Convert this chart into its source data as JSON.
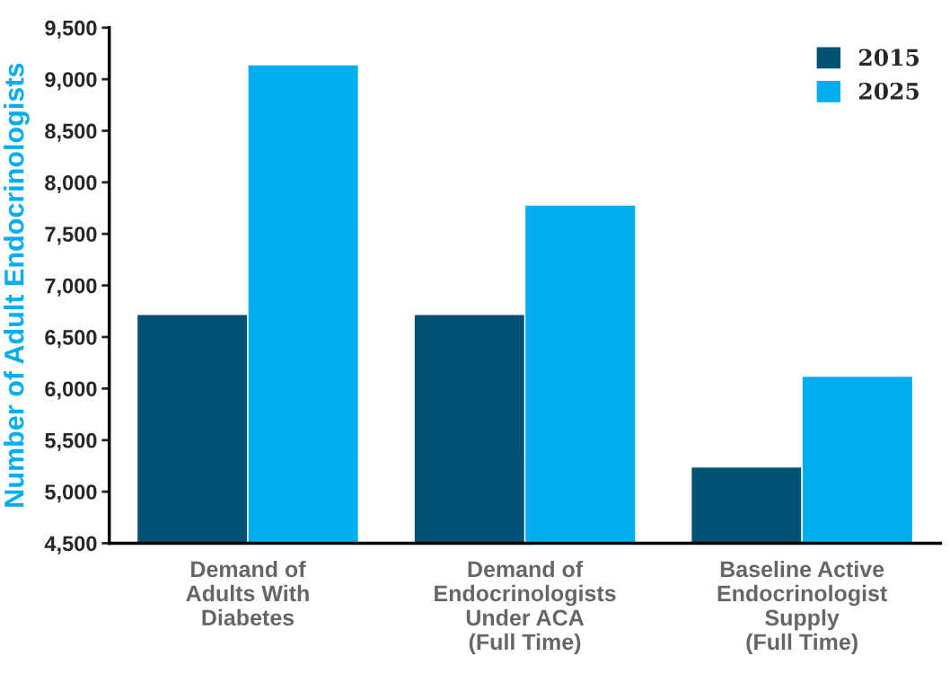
{
  "chart_data": {
    "type": "bar",
    "ylabel": "Number of Adult Endocrinologists",
    "categories": [
      "Demand of\nAdults With\nDiabetes",
      "Demand of\nEndocrinologists\nUnder ACA\n(Full Time)",
      "Baseline Active\nEndocrinologist\nSupply\n(Full Time)"
    ],
    "series": [
      {
        "name": "2015",
        "color": "#005172",
        "values": [
          6720,
          6720,
          5240
        ]
      },
      {
        "name": "2025",
        "color": "#00aeef",
        "values": [
          9140,
          7780,
          6120
        ]
      }
    ],
    "ylim": [
      4500,
      9500
    ],
    "yticks": [
      {
        "value": 4500,
        "label": "4,500"
      },
      {
        "value": 5000,
        "label": "5,000"
      },
      {
        "value": 5500,
        "label": "5,500"
      },
      {
        "value": 6000,
        "label": "6,000"
      },
      {
        "value": 6500,
        "label": "6,500"
      },
      {
        "value": 7000,
        "label": "7,000"
      },
      {
        "value": 7500,
        "label": "7,500"
      },
      {
        "value": 8000,
        "label": "8,000"
      },
      {
        "value": 8500,
        "label": "8,500"
      },
      {
        "value": 9000,
        "label": "9,000"
      },
      {
        "value": 9500,
        "label": "9,500"
      }
    ],
    "grid": false,
    "legend": "top right"
  }
}
